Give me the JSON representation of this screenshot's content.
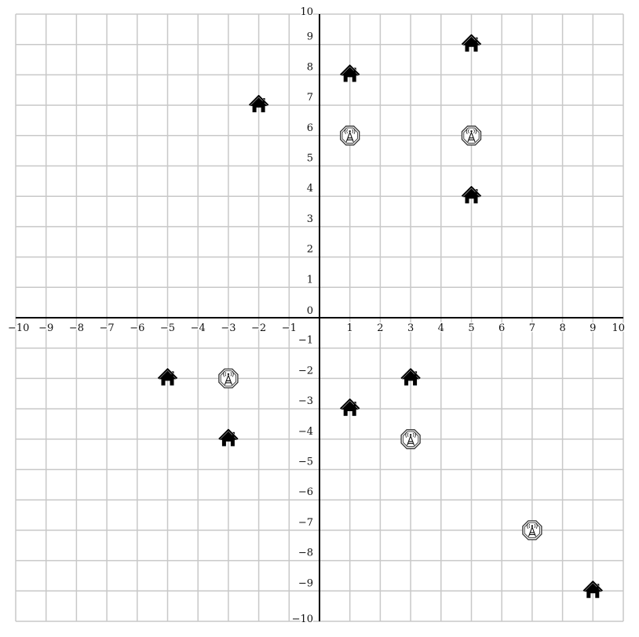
{
  "chart_data": {
    "type": "scatter",
    "xlim": [
      -10,
      10
    ],
    "ylim": [
      -10,
      10
    ],
    "grid": true,
    "x_ticks": [
      "−10",
      "−9",
      "−8",
      "−7",
      "−6",
      "−5",
      "−4",
      "−3",
      "−2",
      "−1",
      "0",
      "1",
      "2",
      "3",
      "4",
      "5",
      "6",
      "7",
      "8",
      "9",
      "10"
    ],
    "y_ticks": [
      "−10",
      "−9",
      "−8",
      "−7",
      "−6",
      "−5",
      "−4",
      "−3",
      "−2",
      "−1",
      "0",
      "1",
      "2",
      "3",
      "4",
      "5",
      "6",
      "7",
      "8",
      "9",
      "10"
    ],
    "series": [
      {
        "marker": "house-icon",
        "color": "#000000",
        "points": [
          {
            "x": 5,
            "y": 9
          },
          {
            "x": 1,
            "y": 8
          },
          {
            "x": -2,
            "y": 7
          },
          {
            "x": 5,
            "y": 4
          },
          {
            "x": -5,
            "y": -2
          },
          {
            "x": 3,
            "y": -2
          },
          {
            "x": 1,
            "y": -3
          },
          {
            "x": -3,
            "y": -4
          },
          {
            "x": 9,
            "y": -9
          }
        ]
      },
      {
        "marker": "cell-tower-icon",
        "color": "#000000",
        "points": [
          {
            "x": 1,
            "y": 6
          },
          {
            "x": 5,
            "y": 6
          },
          {
            "x": -3,
            "y": -2
          },
          {
            "x": 3,
            "y": -4
          },
          {
            "x": 7,
            "y": -7
          }
        ]
      }
    ]
  }
}
